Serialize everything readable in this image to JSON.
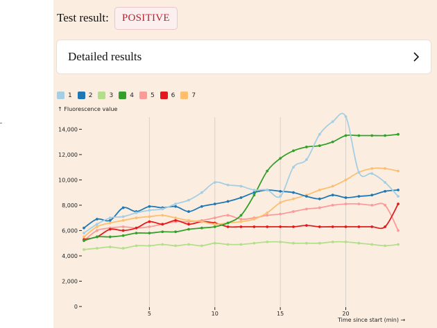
{
  "result": {
    "label": "Test result:",
    "value": "POSITIVE",
    "value_color": "#b3242e"
  },
  "details": {
    "title": "Detailed results",
    "icon": "chevron-right-icon"
  },
  "chart_data": {
    "type": "line",
    "title": "",
    "ylabel": "↑ Fluorescence value",
    "xlabel": "Time since start (min) →",
    "xlim": [
      0,
      24
    ],
    "ylim": [
      0,
      15500
    ],
    "xticks": [
      5,
      10,
      15,
      20
    ],
    "yticks": [
      0,
      2000,
      4000,
      6000,
      8000,
      10000,
      12000,
      14000
    ],
    "ytick_labels": [
      "0",
      "2,000",
      "4,000",
      "6,000",
      "8,000",
      "10,000",
      "12,000",
      "14,000"
    ],
    "grid": "vertical",
    "legend_position": "top-left",
    "x": [
      0,
      1,
      2,
      3,
      4,
      5,
      6,
      7,
      8,
      9,
      10,
      11,
      12,
      13,
      14,
      15,
      16,
      17,
      18,
      19,
      20,
      21,
      22,
      23,
      24
    ],
    "series": [
      {
        "name": "1",
        "color": "#a6cee3",
        "values": [
          5800,
          6500,
          7000,
          7100,
          7400,
          7600,
          7700,
          8100,
          8400,
          9000,
          9800,
          9600,
          9500,
          9200,
          9200,
          8700,
          11000,
          11600,
          13600,
          14600,
          15000,
          10600,
          10500,
          9800,
          8700
        ]
      },
      {
        "name": "2",
        "color": "#1f78b4",
        "values": [
          6200,
          6900,
          6800,
          7800,
          7500,
          7900,
          7800,
          7900,
          7500,
          7900,
          8100,
          8300,
          8600,
          9000,
          9200,
          9100,
          9000,
          8700,
          8500,
          8800,
          8600,
          8700,
          8800,
          9100,
          9200
        ]
      },
      {
        "name": "3",
        "color": "#b2df8a",
        "values": [
          4500,
          4600,
          4700,
          4600,
          4800,
          4800,
          4900,
          4800,
          4900,
          4800,
          5000,
          4900,
          4900,
          5000,
          5100,
          5100,
          5000,
          5000,
          5000,
          5100,
          5100,
          5000,
          4900,
          4800,
          4900
        ]
      },
      {
        "name": "4",
        "color": "#33a02c",
        "values": [
          5200,
          5500,
          5500,
          5600,
          5800,
          5800,
          5900,
          5900,
          6100,
          6200,
          6300,
          6600,
          7200,
          8800,
          10700,
          11700,
          12300,
          12600,
          12700,
          13000,
          13500,
          13500,
          13500,
          13500,
          13600
        ]
      },
      {
        "name": "5",
        "color": "#fb9a99",
        "values": [
          5200,
          6000,
          6200,
          6300,
          6200,
          6300,
          6500,
          6700,
          6700,
          6800,
          7000,
          7200,
          6900,
          7000,
          7200,
          7300,
          7500,
          7700,
          7800,
          8000,
          8100,
          8100,
          8000,
          8000,
          6000
        ]
      },
      {
        "name": "6",
        "color": "#e31a1c",
        "values": [
          5300,
          5500,
          6100,
          6000,
          6200,
          6700,
          6500,
          6800,
          6500,
          6700,
          6600,
          6300,
          6300,
          6300,
          6300,
          6300,
          6300,
          6400,
          6300,
          6300,
          6300,
          6300,
          6300,
          6300,
          8100
        ]
      },
      {
        "name": "7",
        "color": "#fdbf6f",
        "values": [
          5500,
          6300,
          6600,
          6800,
          7000,
          7100,
          7200,
          7000,
          6800,
          6700,
          6500,
          6600,
          6700,
          6900,
          7400,
          8200,
          8500,
          8800,
          9200,
          9500,
          10000,
          10600,
          10900,
          10900,
          10700
        ]
      }
    ]
  }
}
